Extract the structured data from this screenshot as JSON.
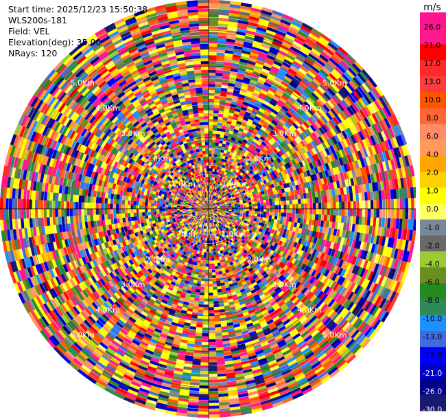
{
  "header": {
    "start_time": "Start time: 2025/12/23 15:50:38",
    "instrument": "WLS200s-181",
    "field": "Field: VEL",
    "elevation": "Elevation(deg): 35.00",
    "nrays": "NRays: 120"
  },
  "chart_data": {
    "type": "heatmap",
    "projection": "polar-ppi",
    "field": "VEL",
    "nrays": 120,
    "range_rings_km": [
      1.0,
      2.0,
      3.0,
      4.0,
      5.0
    ],
    "range_ring_labels": [
      "1.0Km",
      "2.0Km",
      "3.0Km",
      "4.0Km",
      "5.0Km"
    ],
    "colorbar": {
      "unit": "m/s",
      "tick_labels": [
        "26.0",
        "21.0",
        "17.0",
        "13.0",
        "10.0",
        "8.0",
        "6.0",
        "4.0",
        "2.0",
        "1.0",
        "0.0",
        "-1.0",
        "-2.0",
        "-4.0",
        "-6.0",
        "-8.0",
        "-10.0",
        "-13.0",
        "-17.0",
        "-21.0",
        "-26.0",
        "-30.0"
      ],
      "colors": [
        "#ff1493",
        "#ff1a8c",
        "#ff0000",
        "#ff2a2a",
        "#ff3c3c",
        "#ff5500",
        "#ff6633",
        "#ff8c69",
        "#ff9a5a",
        "#ffa500",
        "#ffd000",
        "#ffff00",
        "#ffff66",
        "#778899",
        "#696969",
        "#9acd32",
        "#6b8e23",
        "#228b22",
        "#2e8b57",
        "#1e90ff",
        "#4169e1",
        "#0000ff",
        "#0000cd",
        "#00008b",
        "#191970"
      ]
    }
  }
}
